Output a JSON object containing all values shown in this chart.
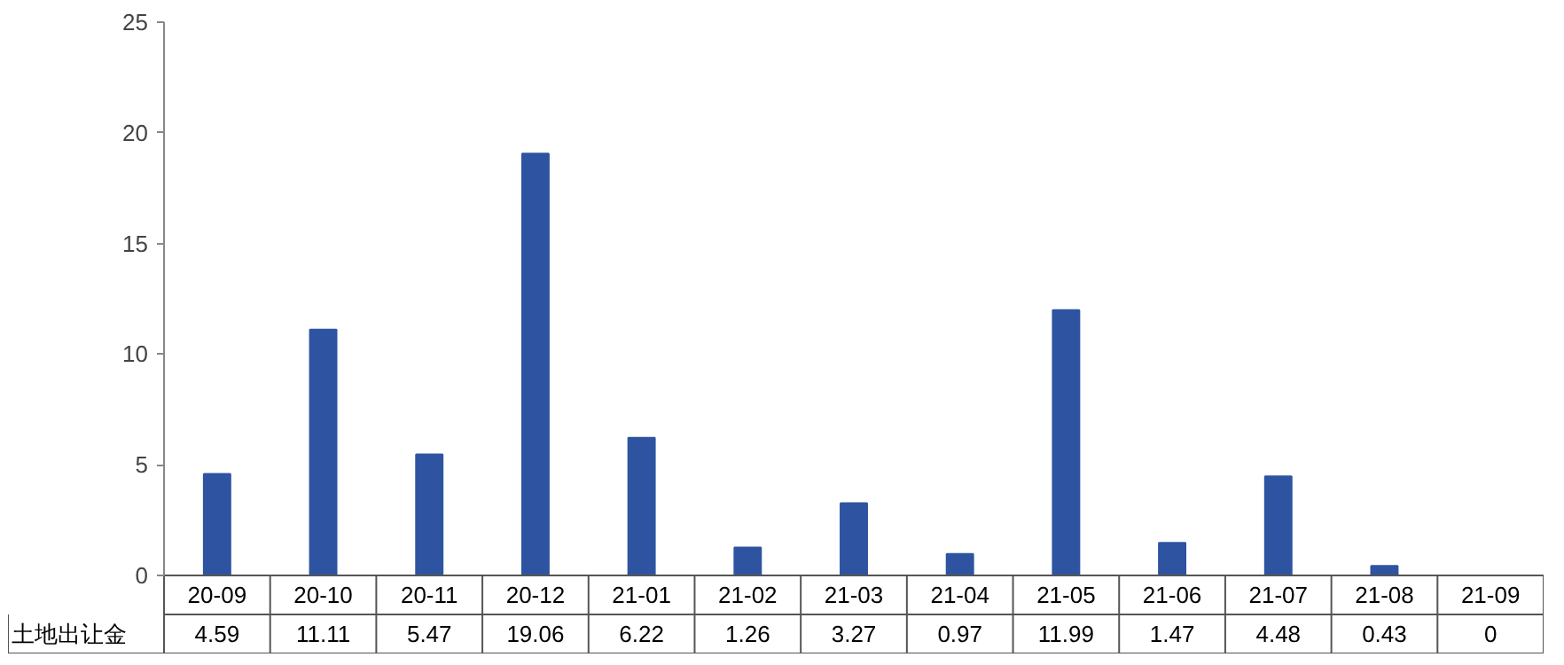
{
  "chart_data": {
    "type": "bar",
    "categories": [
      "20-09",
      "20-10",
      "20-11",
      "20-12",
      "21-01",
      "21-02",
      "21-03",
      "21-04",
      "21-05",
      "21-06",
      "21-07",
      "21-08",
      "21-09"
    ],
    "series": [
      {
        "name": "土地出让金",
        "color": "#2e54a1",
        "values": [
          4.59,
          11.11,
          5.47,
          19.06,
          6.22,
          1.26,
          3.27,
          0.97,
          11.99,
          1.47,
          4.48,
          0.43,
          0
        ]
      }
    ],
    "ylim": [
      0,
      25
    ],
    "yticks": [
      0,
      5,
      10,
      15,
      20,
      25
    ],
    "grid": false,
    "data_labels": true
  }
}
